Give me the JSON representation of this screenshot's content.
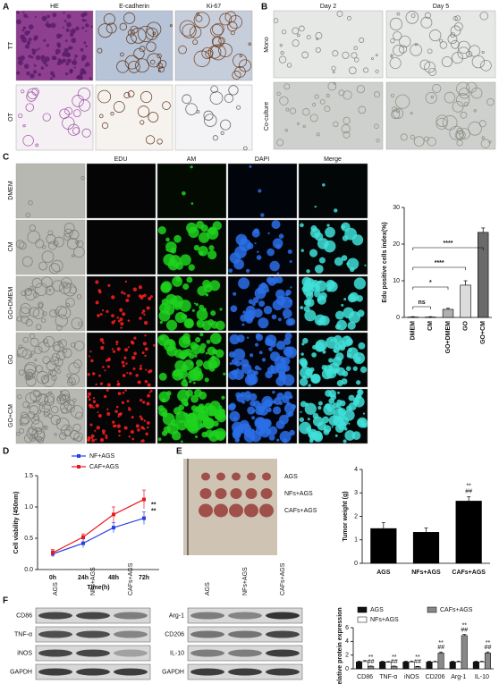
{
  "panel_labels": [
    "A",
    "B",
    "C",
    "D",
    "E",
    "F"
  ],
  "panel_a": {
    "columns": [
      "HE",
      "E-cadherin",
      "Ki-67"
    ],
    "rows": [
      "TT",
      "OT"
    ]
  },
  "panel_b": {
    "columns": [
      "Day 2",
      "Day 5"
    ],
    "rows": [
      "Mono",
      "Co-culture"
    ]
  },
  "panel_c": {
    "columns": [
      "EDU",
      "AM",
      "DAPI",
      "Merge"
    ],
    "rows": [
      "DMEM",
      "CM",
      "GO+DMEM",
      "GO",
      "GO+CM"
    ]
  },
  "panel_e": {
    "groups": [
      "AGS",
      "NFs+AGS",
      "CAFs+AGS"
    ]
  },
  "panel_f": {
    "lanes": [
      "AGS",
      "NFs+AGS",
      "CAFs+AGS"
    ],
    "left_rows": [
      "CD86",
      "TNF-α",
      "iNOS",
      "GAPDH"
    ],
    "right_rows": [
      "Arg-1",
      "CD206",
      "IL-10",
      "GAPDH"
    ]
  },
  "chart_data": [
    {
      "type": "bar",
      "ylabel": "Edu positive cells index(%)",
      "categories": [
        "DMEM",
        "CM",
        "GO+DMEM",
        "GO",
        "GO+CM"
      ],
      "values": [
        0.1,
        0.1,
        2.2,
        8.8,
        23.2
      ],
      "errors": [
        0.1,
        0.1,
        0.3,
        1.2,
        1.2
      ],
      "colors": [
        "#f2f2f2",
        "#f2f2f2",
        "#b0b0b0",
        "#dcdcdc",
        "#6a6a6a"
      ],
      "ylim": [
        0,
        30
      ],
      "yticks": [
        0,
        10,
        20,
        30
      ],
      "annotations": [
        "ns",
        "*",
        "****",
        "****"
      ]
    },
    {
      "type": "line",
      "ylabel": "Cell viability (450nm)",
      "xlabel": "Time(h)",
      "categories": [
        "0h",
        "24h",
        "48h",
        "72h"
      ],
      "series": [
        {
          "name": "NF+AGS",
          "color": "#2b3fe0",
          "values": [
            0.25,
            0.42,
            0.67,
            0.82
          ],
          "errors": [
            0.05,
            0.07,
            0.08,
            0.1
          ]
        },
        {
          "name": "CAF+AGS",
          "color": "#e8191e",
          "values": [
            0.27,
            0.52,
            0.88,
            1.12
          ],
          "errors": [
            0.05,
            0.05,
            0.12,
            0.15
          ]
        }
      ],
      "ylim": [
        0,
        1.5
      ],
      "yticks": [
        {
          "value": 0,
          "label": "0.0"
        },
        0.5,
        {
          "value": 1,
          "label": "1.0"
        },
        1.5
      ],
      "annotations": [
        "**",
        "**"
      ]
    },
    {
      "type": "bar",
      "ylabel": "Tumor weight (g)",
      "categories": [
        "AGS",
        "NFs+AGS",
        "CAFs+AGS"
      ],
      "values": [
        1.48,
        1.32,
        2.65
      ],
      "errors": [
        0.25,
        0.18,
        0.18
      ],
      "colors": [
        "#000000",
        "#000000",
        "#000000"
      ],
      "ylim": [
        0,
        4
      ],
      "yticks": [
        0,
        1,
        2,
        3,
        4
      ],
      "annotations": [
        "**",
        "##"
      ]
    },
    {
      "type": "grouped_bar",
      "ylabel": "Relative protein expression",
      "categories": [
        "CD86",
        "TNF-α",
        "iNOS",
        "CD206",
        "Arg-1",
        "IL-10"
      ],
      "series": [
        {
          "name": "AGS",
          "color": "#111111",
          "values": [
            1.0,
            1.0,
            1.0,
            1.0,
            1.0,
            1.0
          ],
          "errors": [
            0.12,
            0.1,
            0.1,
            0.1,
            0.1,
            0.1
          ]
        },
        {
          "name": "NFs+AGS",
          "color": "#ffffff",
          "values": [
            1.05,
            0.95,
            1.0,
            1.0,
            1.0,
            1.0
          ],
          "errors": [
            0.15,
            0.1,
            0.12,
            0.1,
            0.12,
            0.1
          ]
        },
        {
          "name": "CAFs+AGS",
          "color": "#888888",
          "values": [
            0.35,
            0.35,
            0.3,
            2.3,
            4.85,
            2.3
          ],
          "errors": [
            0.05,
            0.05,
            0.05,
            0.15,
            0.15,
            0.15
          ]
        }
      ],
      "ylim": [
        0,
        6
      ],
      "yticks": [
        0,
        2,
        4,
        6
      ],
      "annotations": [
        [
          "**",
          "##"
        ],
        [
          "**",
          "##"
        ],
        [
          "**",
          "##"
        ],
        [
          "**",
          "##"
        ],
        [
          "**",
          "##"
        ],
        [
          "**",
          "##"
        ]
      ]
    }
  ]
}
